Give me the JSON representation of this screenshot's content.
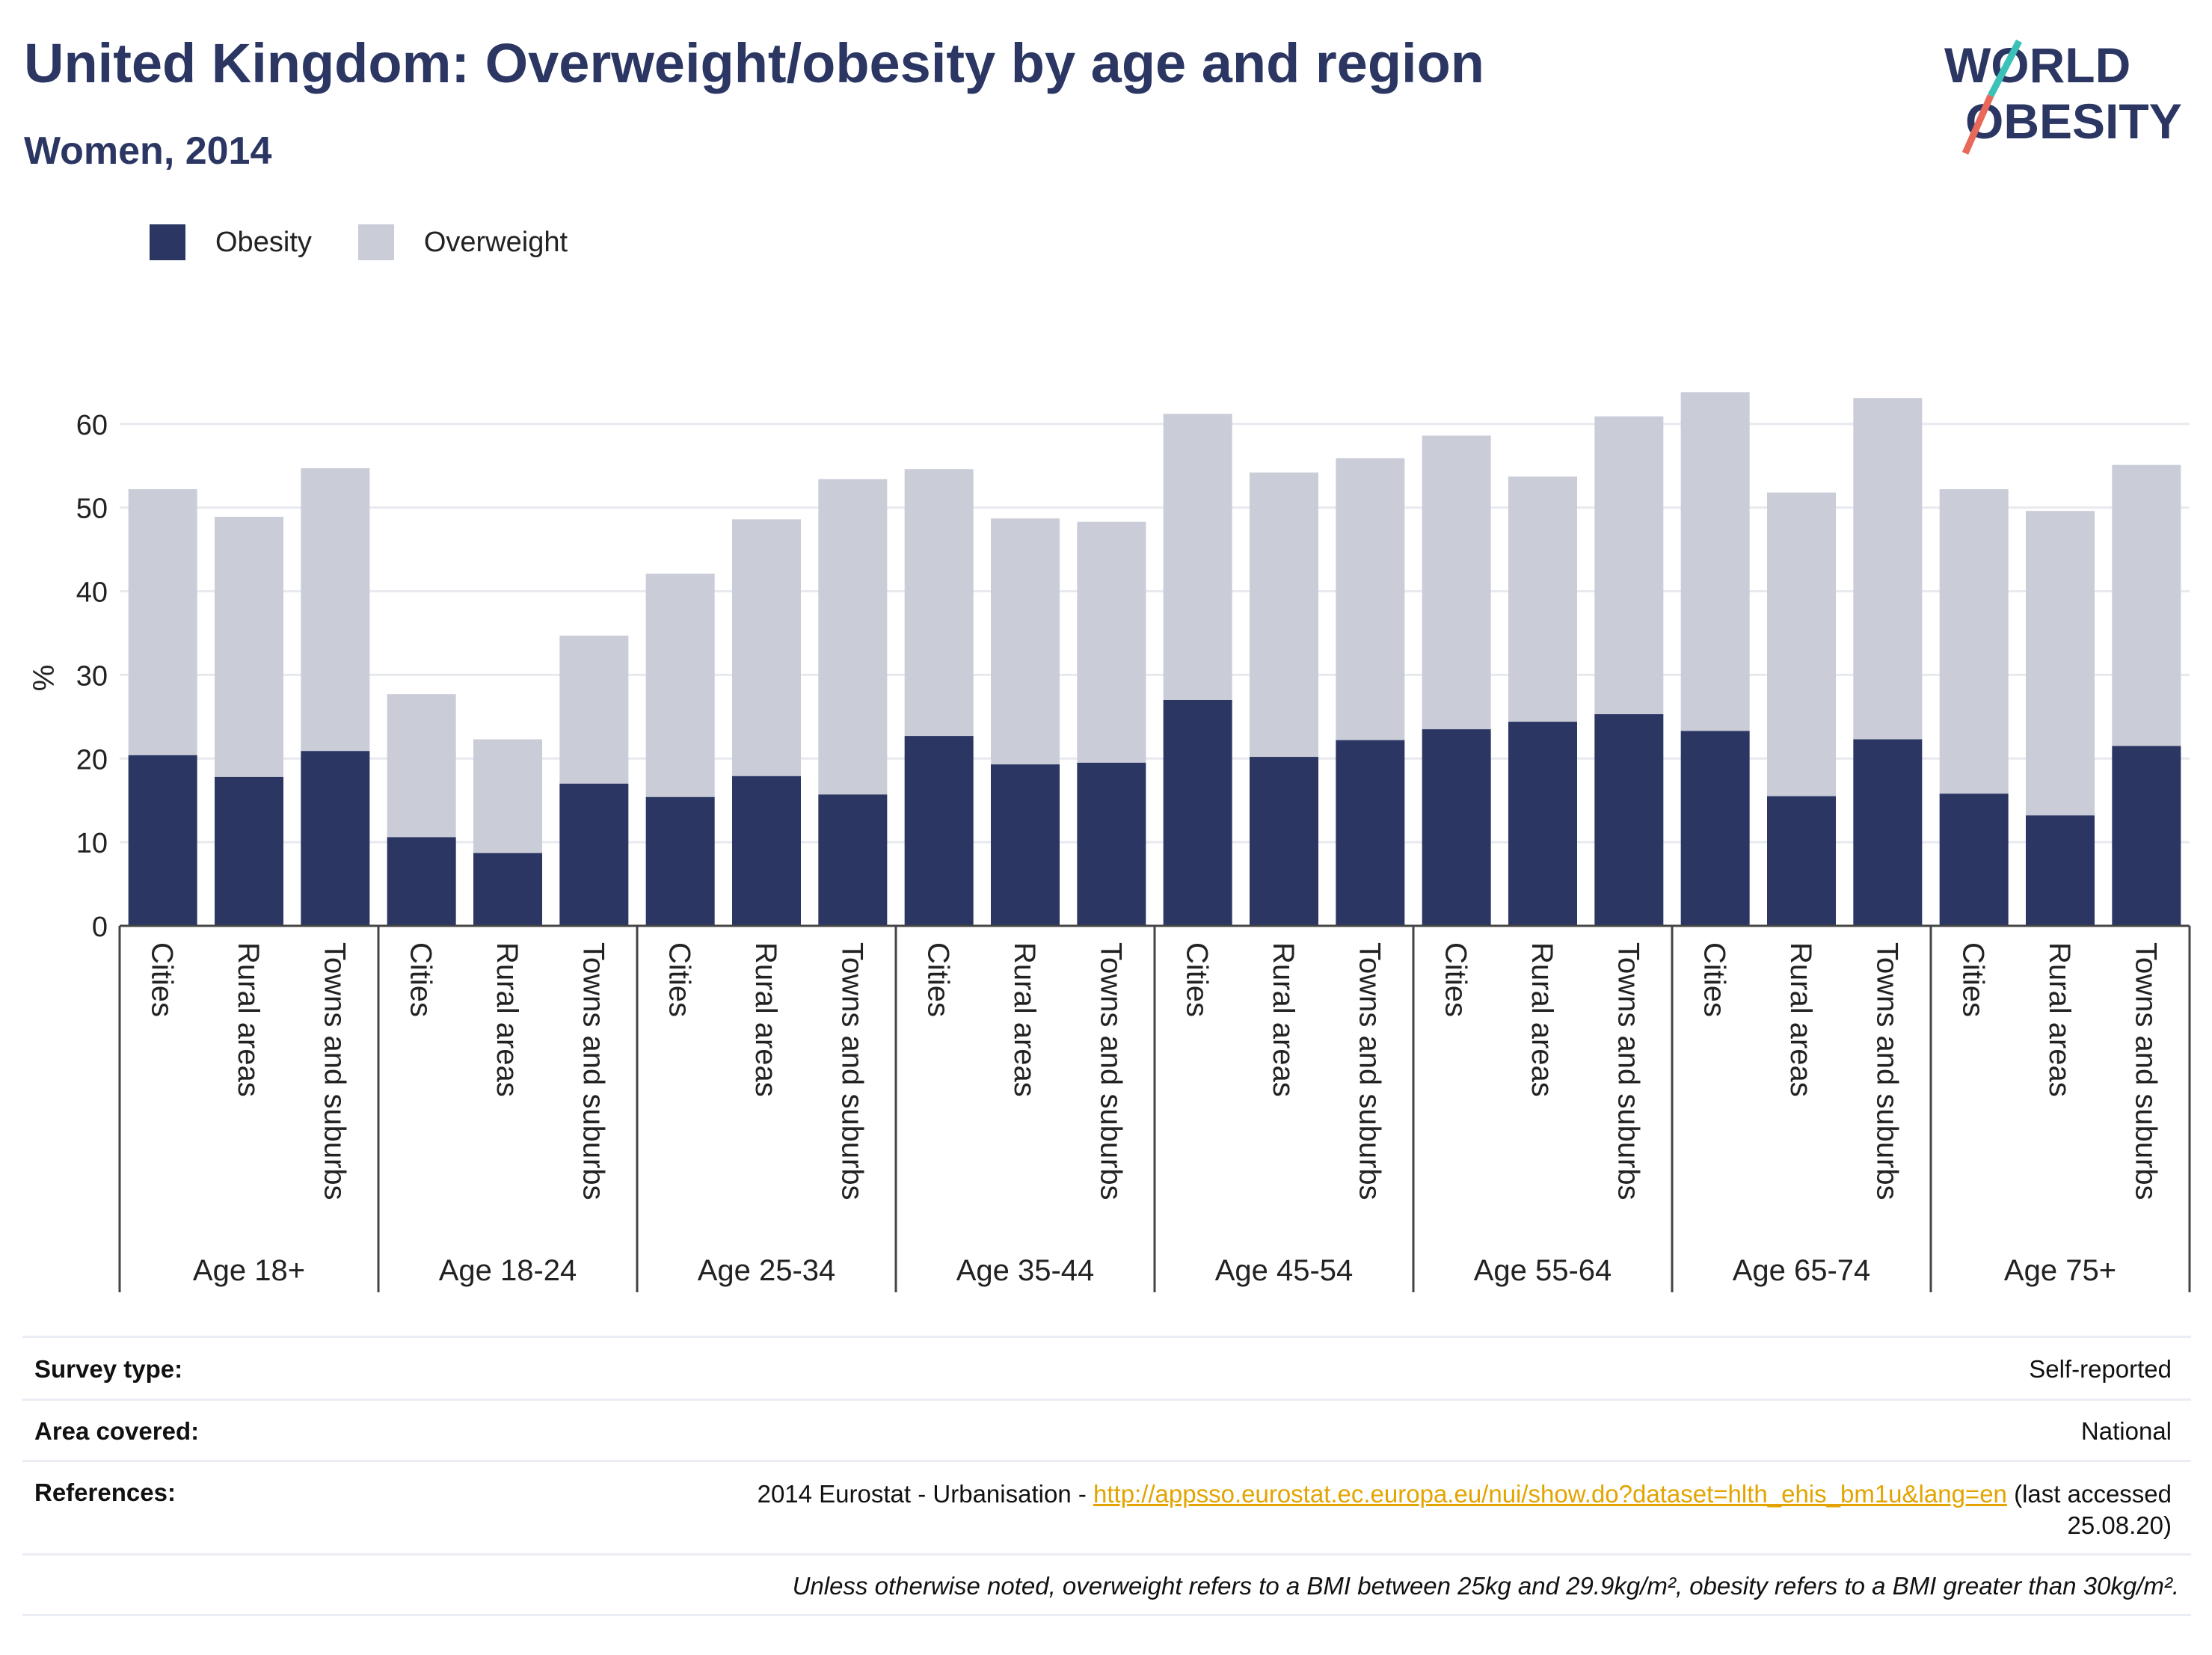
{
  "title": "United Kingdom: Overweight/obesity by age and region",
  "subtitle": "Women, 2014",
  "logo": {
    "line1": "WORLD",
    "line2": "OBESITY"
  },
  "legend": [
    {
      "name": "Obesity",
      "color": "#2b3663"
    },
    {
      "name": "Overweight",
      "color": "#cacdd8"
    }
  ],
  "chart_data": {
    "type": "bar",
    "stacked": true,
    "ylabel": "%",
    "ylim": [
      0,
      70
    ],
    "yticks": [
      0,
      10,
      20,
      30,
      40,
      50,
      60
    ],
    "grid": true,
    "groups": [
      "Age 18+",
      "Age 18-24",
      "Age 25-34",
      "Age 35-44",
      "Age 45-54",
      "Age 55-64",
      "Age 65-74",
      "Age 75+"
    ],
    "subcategories": [
      "Cities",
      "Rural areas",
      "Towns and suburbs"
    ],
    "series": [
      {
        "name": "Obesity",
        "color": "#2b3663",
        "values": [
          20.4,
          17.8,
          20.9,
          10.6,
          8.7,
          17.0,
          15.4,
          17.9,
          15.7,
          22.7,
          19.3,
          19.5,
          27.0,
          20.2,
          22.2,
          23.5,
          24.4,
          25.3,
          23.3,
          15.5,
          22.3,
          15.8,
          13.2,
          21.5
        ]
      },
      {
        "name": "Overweight",
        "color": "#cacdd8",
        "values": [
          31.8,
          31.1,
          33.8,
          17.1,
          13.6,
          17.7,
          26.7,
          30.7,
          37.7,
          31.9,
          29.4,
          28.8,
          34.2,
          34.0,
          33.7,
          35.1,
          29.3,
          35.6,
          40.5,
          36.3,
          40.8,
          36.4,
          36.4,
          33.6
        ]
      }
    ]
  },
  "info": {
    "survey_type_label": "Survey type:",
    "survey_type_value": "Self-reported",
    "area_label": "Area covered:",
    "area_value": "National",
    "references_label": "References:",
    "references_prefix": "2014 Eurostat - Urbanisation - ",
    "references_link": "http://appsso.eurostat.ec.europa.eu/nui/show.do?dataset=hlth_ehis_bm1u&lang=en",
    "references_suffix": " (last accessed",
    "references_date": "25.08.20)",
    "footnote": "Unless otherwise noted, overweight refers to a BMI between 25kg and 29.9kg/m², obesity refers to a BMI greater than 30kg/m²."
  }
}
